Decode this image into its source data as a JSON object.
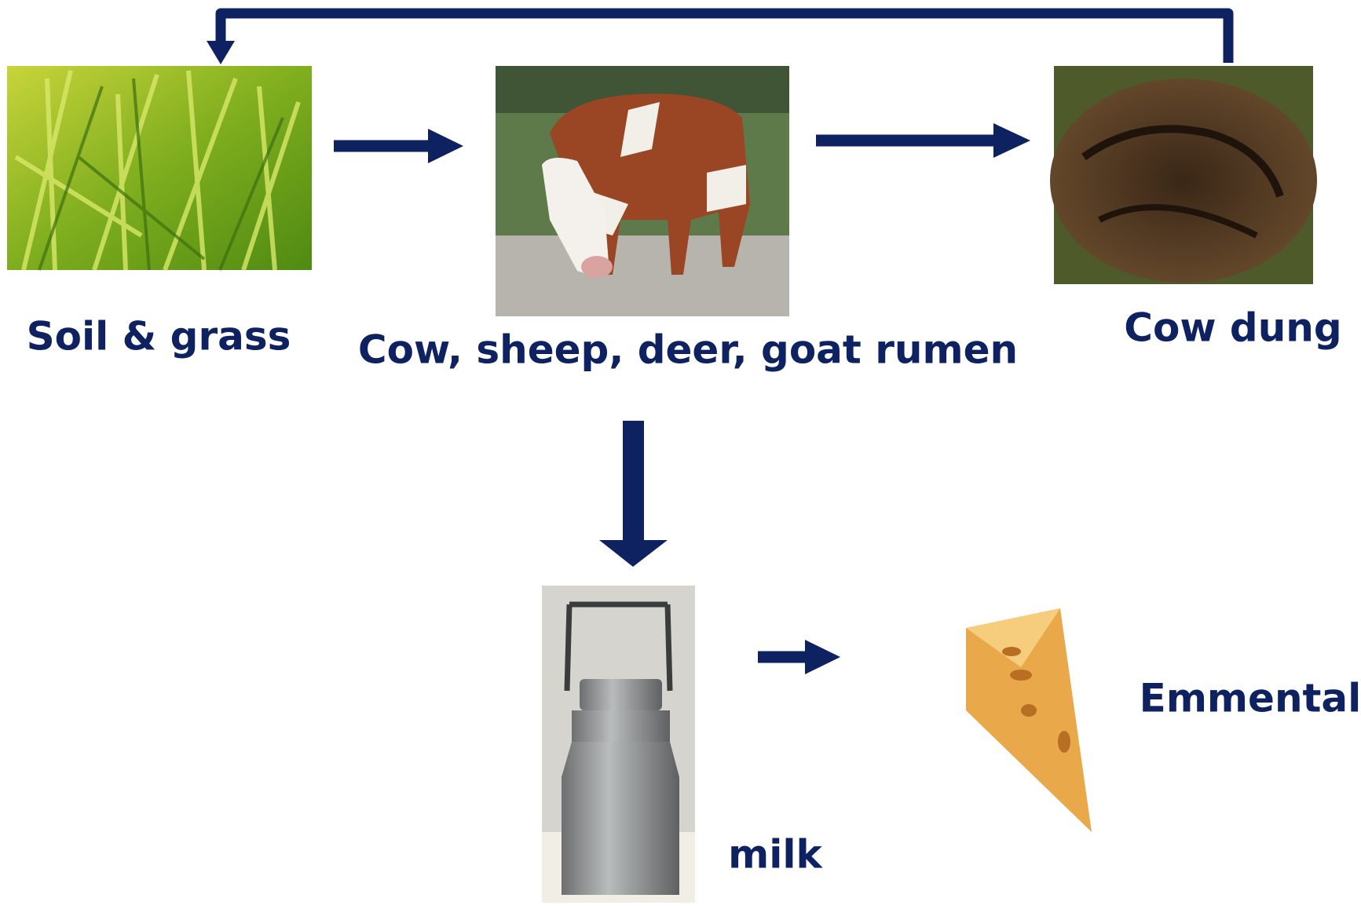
{
  "nodes": [
    {
      "label": "Soil & grass"
    },
    {
      "label": "Cow, sheep, deer, goat rumen"
    },
    {
      "label": "Cow dung"
    },
    {
      "label": "milk"
    },
    {
      "label": "Emmental"
    }
  ]
}
